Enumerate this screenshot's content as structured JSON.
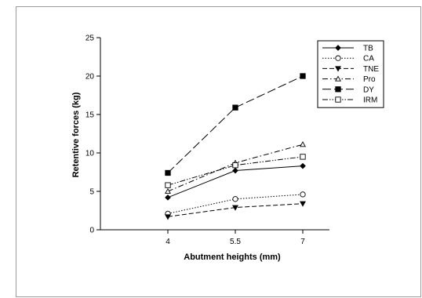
{
  "chart_data": {
    "type": "line",
    "xlabel": "Abutment heights (mm)",
    "ylabel": "Retentive forces (kg)",
    "categories": [
      "4",
      "5.5",
      "7"
    ],
    "ylim": [
      0,
      25
    ],
    "yticks": [
      "0",
      "5",
      "10",
      "15",
      "20",
      "25"
    ],
    "legend_position": "top-right",
    "grid": false,
    "series": [
      {
        "name": "TB",
        "values": [
          4.2,
          7.7,
          8.3
        ],
        "marker": "diamond-filled",
        "dash": "solid"
      },
      {
        "name": "CA",
        "values": [
          2.1,
          4.0,
          4.6
        ],
        "marker": "circle-open",
        "dash": "dotted"
      },
      {
        "name": "TNE",
        "values": [
          1.7,
          2.9,
          3.4
        ],
        "marker": "triangle-down-filled",
        "dash": "dashed"
      },
      {
        "name": "Pro",
        "values": [
          5.0,
          8.7,
          11.1
        ],
        "marker": "triangle-up-open",
        "dash": "dashdot"
      },
      {
        "name": "DY",
        "values": [
          7.4,
          15.9,
          20.0
        ],
        "marker": "square-filled",
        "dash": "longdash"
      },
      {
        "name": "IRM",
        "values": [
          5.8,
          8.4,
          9.5
        ],
        "marker": "square-open",
        "dash": "dashdotdot"
      }
    ]
  }
}
